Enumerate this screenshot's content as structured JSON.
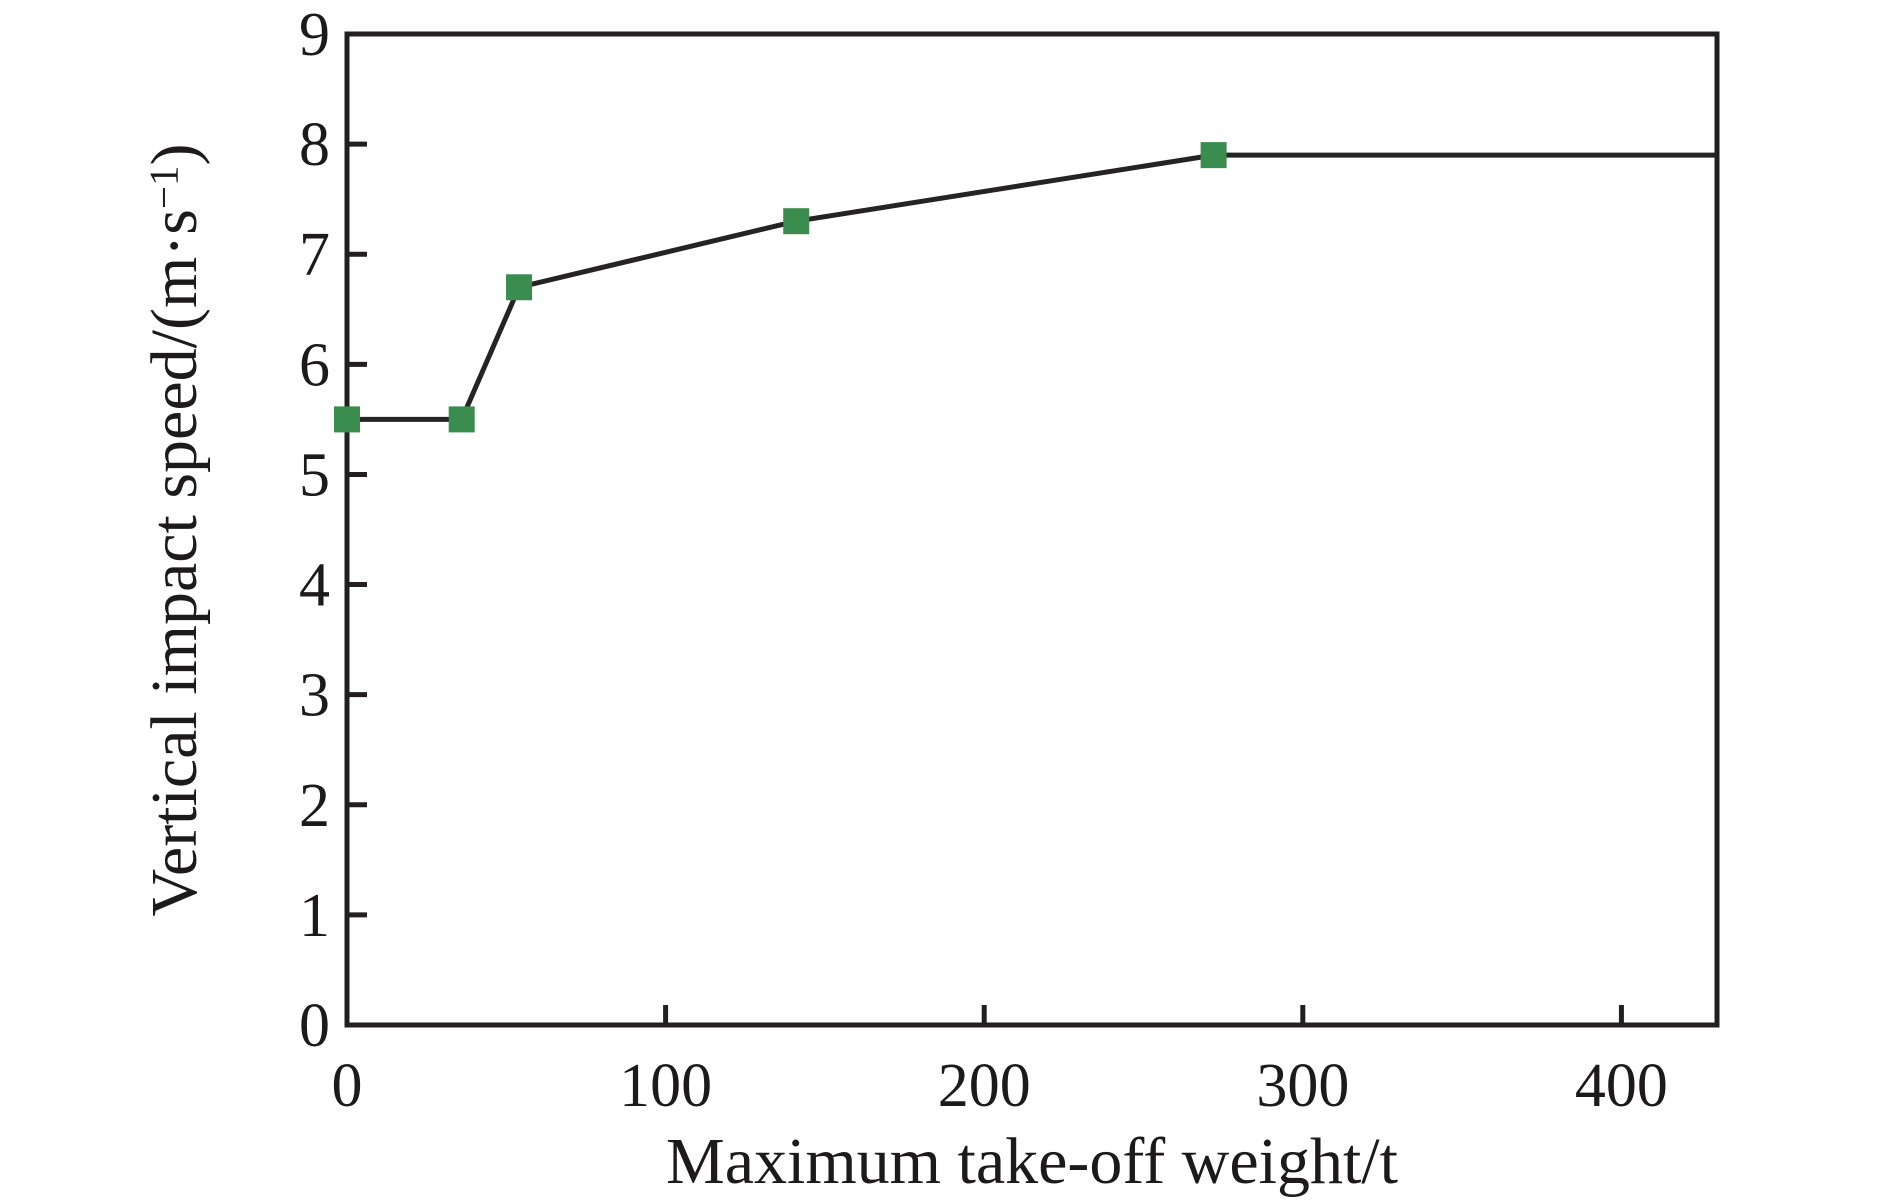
{
  "chart_data": {
    "type": "line",
    "title": "",
    "xlabel": "Maximum take-off weight/t",
    "ylabel": "Vertical impact speed/(m·s⁻¹)",
    "xlim": [
      0,
      430
    ],
    "ylim": [
      0,
      9
    ],
    "x_ticks": [
      0,
      100,
      200,
      300,
      400
    ],
    "y_ticks": [
      0,
      1,
      2,
      3,
      4,
      5,
      6,
      7,
      8,
      9
    ],
    "grid": false,
    "legend": "none",
    "frame": "full-box",
    "tick_direction": "in",
    "series": [
      {
        "name": "vertical-impact-speed-vs-mtow",
        "marker": "square",
        "marker_size": 26,
        "marker_color": "#3b8c4f",
        "line_color": "#262324",
        "line_width": 5,
        "points": [
          [
            0,
            5.5
          ],
          [
            36,
            5.5
          ],
          [
            54,
            6.7
          ],
          [
            141,
            7.3
          ],
          [
            272,
            7.9
          ]
        ],
        "trailing_line_end": [
          430,
          7.9
        ]
      }
    ]
  },
  "style": {
    "axis_color": "#231f20",
    "text_color": "#1c1a1b",
    "background": "#ffffff"
  }
}
